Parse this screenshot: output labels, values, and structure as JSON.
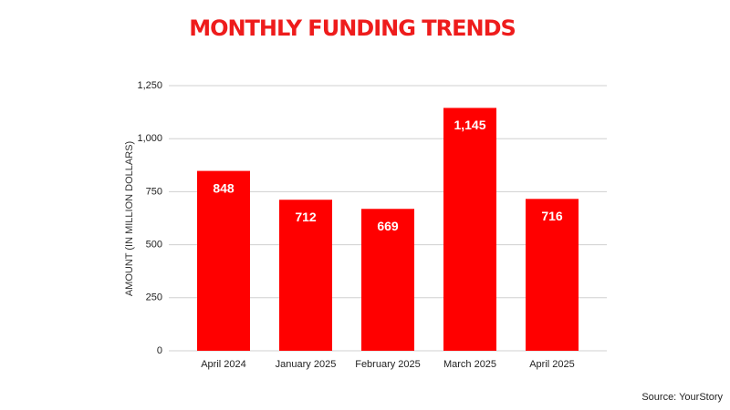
{
  "chart_data": {
    "type": "bar",
    "title": "MONTHLY FUNDING TRENDS",
    "y_label": "AMOUNT (IN MILLION DOLLARS)",
    "source": "Source: YourStory",
    "categories": [
      "April 2024",
      "January 2025",
      "February 2025",
      "March 2025",
      "April 2025"
    ],
    "values": [
      848,
      712,
      669,
      1145,
      716
    ],
    "value_labels": [
      "848",
      "712",
      "669",
      "1,145",
      "716"
    ],
    "color": "#ff0000",
    "ylim": [
      0,
      1250
    ],
    "yticks": [
      0,
      250,
      500,
      750,
      {
        "value": 1000,
        "label": "1,000"
      },
      {
        "value": 1250,
        "label": "1,250"
      }
    ],
    "grid": true
  }
}
